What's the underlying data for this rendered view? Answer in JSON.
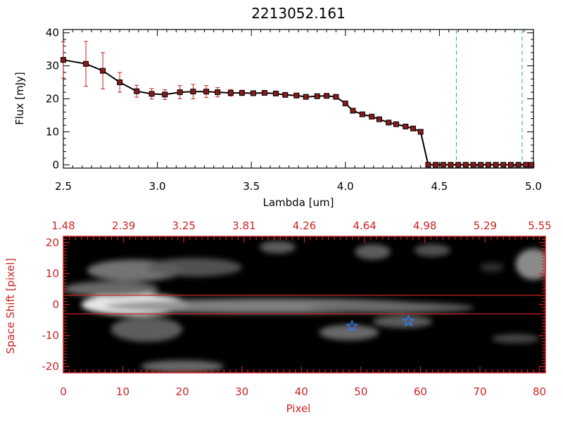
{
  "chart_data": [
    {
      "type": "line",
      "title": "2213052.161",
      "xlabel": "Lambda [um]",
      "ylabel": "Flux [mJy]",
      "xlim": [
        2.5,
        5.0
      ],
      "ylim": [
        -1,
        41
      ],
      "x_ticks": [
        "2.5",
        "3.0",
        "3.5",
        "4.0",
        "4.5",
        "5.0"
      ],
      "y_ticks": [
        "0",
        "10",
        "20",
        "30",
        "40"
      ],
      "grid": false,
      "legend": "none",
      "colors": {
        "line": "#000000",
        "marker": "#8b1a1a",
        "errorbar": "#cc2222",
        "vline": "#22a6c8"
      },
      "reference_lines_x": [
        4.59,
        4.94
      ],
      "series": [
        {
          "x": [
            2.5,
            2.62,
            2.71,
            2.8,
            2.89,
            2.97,
            3.04,
            3.12,
            3.19,
            3.26,
            3.32,
            3.39,
            3.45,
            3.51,
            3.57,
            3.63,
            3.68,
            3.74,
            3.79,
            3.85,
            3.9,
            3.95,
            4.0,
            4.04,
            4.09,
            4.14,
            4.18,
            4.23,
            4.27,
            4.32,
            4.36,
            4.4,
            4.44,
            4.48,
            4.52,
            4.56,
            4.6,
            4.64,
            4.68,
            4.72,
            4.76,
            4.8,
            4.84,
            4.88,
            4.92,
            4.96,
            4.99
          ],
          "y": [
            31.8,
            30.6,
            28.5,
            25.0,
            22.3,
            21.5,
            21.3,
            22.0,
            22.2,
            22.2,
            22.0,
            21.8,
            21.8,
            21.7,
            21.8,
            21.6,
            21.2,
            21.0,
            20.6,
            20.8,
            20.9,
            20.6,
            18.6,
            16.4,
            15.3,
            14.6,
            13.8,
            12.8,
            12.3,
            11.6,
            11.0,
            10.0,
            0,
            0,
            0,
            0,
            0,
            0,
            0,
            0,
            0,
            0,
            0,
            0,
            0,
            0,
            0
          ],
          "yerr": [
            5.5,
            6.8,
            5.5,
            3.0,
            1.8,
            1.6,
            1.5,
            2.0,
            2.2,
            1.8,
            1.4,
            1.0,
            0.8,
            0.6,
            0.5,
            0.5,
            0.5,
            0.5,
            0.5,
            0.5,
            0.5,
            0.5,
            0.5,
            0.5,
            0.5,
            0.5,
            0.5,
            0.5,
            0.5,
            0.5,
            0.5,
            0.5,
            0,
            0,
            0,
            0,
            0,
            0,
            0,
            0,
            0,
            0,
            0,
            0,
            0,
            0,
            0
          ]
        }
      ]
    },
    {
      "type": "heatmap",
      "xlabel": "Pixel",
      "ylabel": "Space Shift [pixel]",
      "xlim": [
        0,
        81
      ],
      "ylim": [
        -22,
        22
      ],
      "x_ticks": [
        "0",
        "10",
        "20",
        "30",
        "40",
        "50",
        "60",
        "70",
        "80"
      ],
      "y_ticks": [
        "-20",
        "-10",
        "0",
        "10",
        "20"
      ],
      "top_axis_ticks": [
        "1.48",
        "2.39",
        "3.25",
        "3.81",
        "4.26",
        "4.64",
        "4.98",
        "5.29",
        "5.55"
      ],
      "colormap": "grayscale",
      "colors": {
        "axis": "#cc2222",
        "lines": "#cc2222",
        "stars": "#2a7fff"
      },
      "horizontal_lines_y": [
        3,
        -3
      ],
      "stars": [
        {
          "x": 48.5,
          "y": -7
        },
        {
          "x": 58,
          "y": -5.3
        }
      ],
      "blobs": [
        {
          "x": 12,
          "y": 0,
          "rx": 9,
          "ry": 3.5,
          "intensity": 1.0
        },
        {
          "x": 35,
          "y": -0.5,
          "rx": 28,
          "ry": 2.4,
          "intensity": 0.55
        },
        {
          "x": 55,
          "y": -1,
          "rx": 14,
          "ry": 1.8,
          "intensity": 0.4
        },
        {
          "x": 8,
          "y": 5,
          "rx": 8,
          "ry": 2.5,
          "intensity": 0.45
        },
        {
          "x": 12,
          "y": 11,
          "rx": 8,
          "ry": 3.5,
          "intensity": 0.5
        },
        {
          "x": 22,
          "y": 12,
          "rx": 8,
          "ry": 3,
          "intensity": 0.35
        },
        {
          "x": 14,
          "y": -8,
          "rx": 6,
          "ry": 4,
          "intensity": 0.4
        },
        {
          "x": 48,
          "y": -9,
          "rx": 5,
          "ry": 2.5,
          "intensity": 0.45
        },
        {
          "x": 57,
          "y": -5.5,
          "rx": 5,
          "ry": 2,
          "intensity": 0.4
        },
        {
          "x": 52,
          "y": 17,
          "rx": 3,
          "ry": 2.5,
          "intensity": 0.4
        },
        {
          "x": 62,
          "y": 17.5,
          "rx": 3,
          "ry": 2,
          "intensity": 0.35
        },
        {
          "x": 79,
          "y": 13,
          "rx": 3,
          "ry": 5,
          "intensity": 0.6
        },
        {
          "x": 20,
          "y": -20,
          "rx": 7,
          "ry": 2,
          "intensity": 0.45
        },
        {
          "x": 36,
          "y": 18.5,
          "rx": 3,
          "ry": 2,
          "intensity": 0.4
        },
        {
          "x": 76,
          "y": -11,
          "rx": 4,
          "ry": 1.5,
          "intensity": 0.3
        },
        {
          "x": 72,
          "y": 12,
          "rx": 2,
          "ry": 1.5,
          "intensity": 0.2
        }
      ]
    }
  ]
}
